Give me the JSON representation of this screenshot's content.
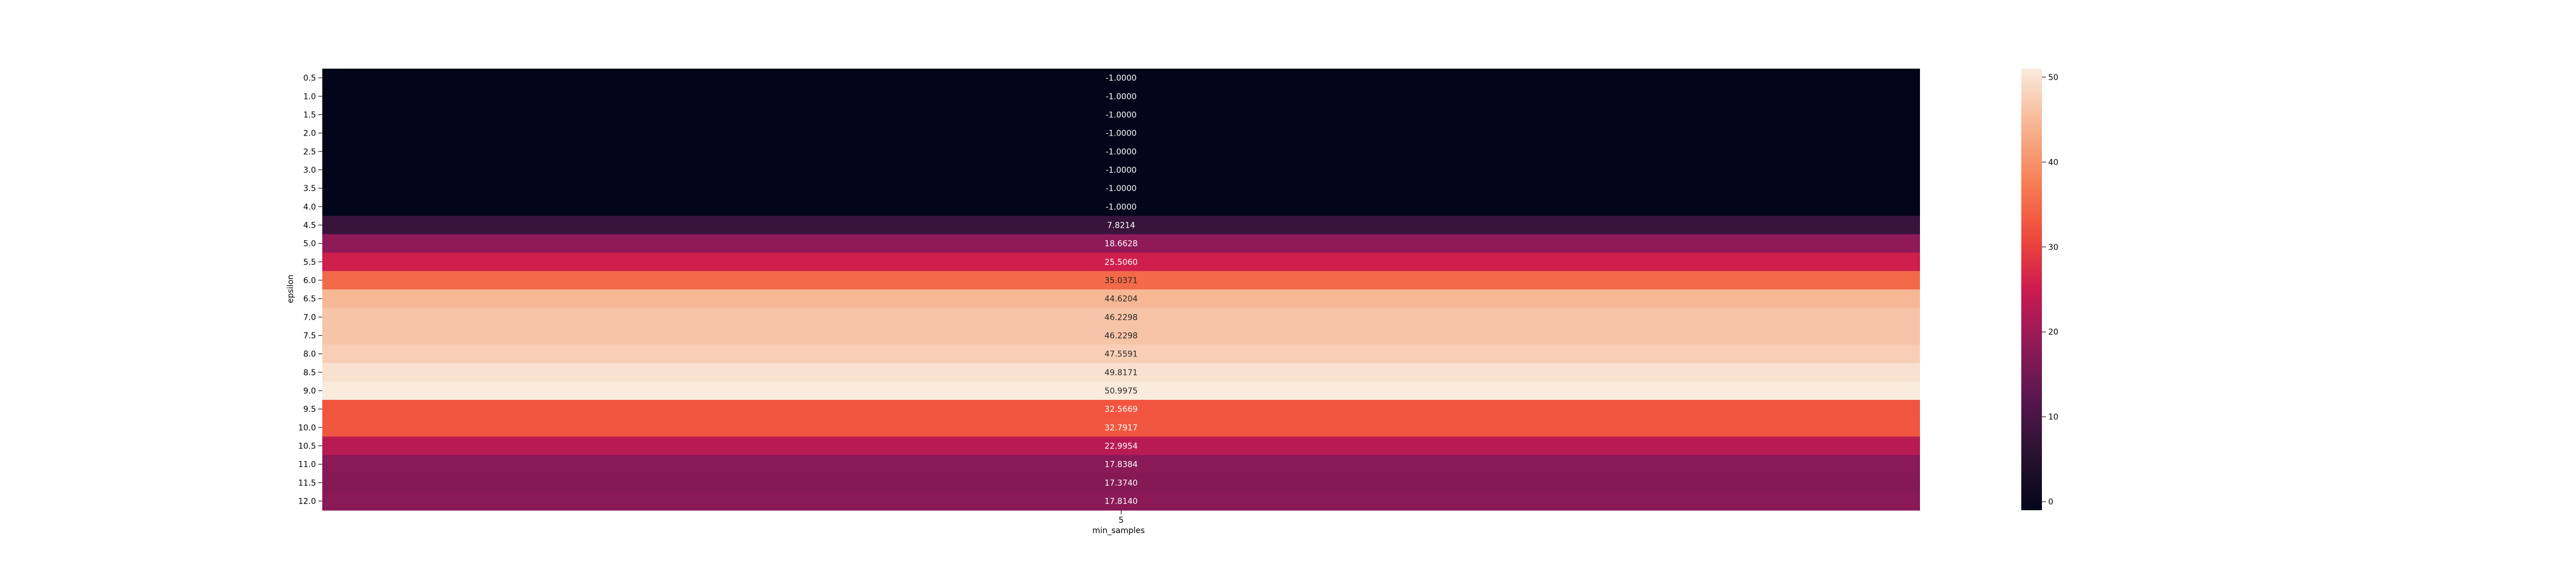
{
  "chart_data": {
    "type": "heatmap",
    "title": "",
    "xlabel": "min_samples",
    "ylabel": "epsilon",
    "x_categories": [
      "5"
    ],
    "y_categories": [
      "0.5",
      "1.0",
      "1.5",
      "2.0",
      "2.5",
      "3.0",
      "3.5",
      "4.0",
      "4.5",
      "5.0",
      "5.5",
      "6.0",
      "6.5",
      "7.0",
      "7.5",
      "8.0",
      "8.5",
      "9.0",
      "9.5",
      "10.0",
      "10.5",
      "11.0",
      "11.5",
      "12.0"
    ],
    "values": [
      -1.0,
      -1.0,
      -1.0,
      -1.0,
      -1.0,
      -1.0,
      -1.0,
      -1.0,
      7.8214,
      18.6628,
      25.506,
      35.0371,
      44.6204,
      46.2298,
      46.2298,
      47.5591,
      49.8171,
      50.9975,
      32.5669,
      32.7917,
      22.9954,
      17.8384,
      17.374,
      17.814
    ],
    "value_labels": [
      "-1.0000",
      "-1.0000",
      "-1.0000",
      "-1.0000",
      "-1.0000",
      "-1.0000",
      "-1.0000",
      "-1.0000",
      "7.8214",
      "18.6628",
      "25.5060",
      "35.0371",
      "44.6204",
      "46.2298",
      "46.2298",
      "47.5591",
      "49.8171",
      "50.9975",
      "32.5669",
      "32.7917",
      "22.9954",
      "17.8384",
      "17.3740",
      "17.8140"
    ],
    "colormap": "rocket",
    "colorbar": {
      "vmin": -1.0,
      "vmax": 51.0,
      "ticks": [
        0,
        10,
        20,
        30,
        40,
        50
      ]
    },
    "grid": false
  }
}
